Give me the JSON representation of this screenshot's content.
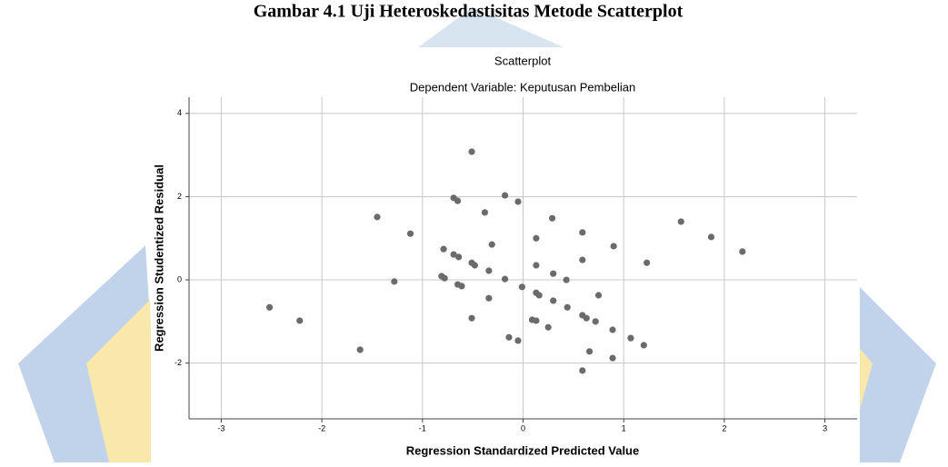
{
  "caption": "Gambar 4.1 Uji Heteroskedastisitas Metode Scatterplot",
  "chart_data": {
    "type": "scatter",
    "title": "Scatterplot",
    "subtitle": "Dependent Variable: Keputusan Pembelian",
    "x_label": "Regression Standardized Predicted Value",
    "y_label": "Regression Studentized Residual",
    "color": "#6b6b6b",
    "grid": true,
    "xlim": [
      -3.32,
      3.32
    ],
    "ylim": [
      -3.34,
      4.39
    ],
    "xticks": [
      -3,
      -2,
      -1,
      0,
      1,
      2,
      3
    ],
    "yticks": [
      -2,
      0,
      2,
      4
    ],
    "x": [
      -0.51,
      -0.69,
      -0.65,
      -0.18,
      -0.05,
      -0.38,
      -1.45,
      0.29,
      1.57,
      0.59,
      -1.12,
      0.13,
      1.87,
      -0.31,
      0.9,
      2.18,
      -0.79,
      -0.69,
      -0.64,
      0.59,
      1.23,
      -0.51,
      -0.48,
      0.13,
      -0.34,
      0.3,
      -0.81,
      -0.78,
      -0.18,
      0.43,
      -1.28,
      -0.65,
      -0.61,
      -0.01,
      0.13,
      0.16,
      -0.34,
      0.75,
      0.3,
      0.44,
      -2.52,
      0.59,
      0.63,
      -0.51,
      -2.22,
      0.09,
      0.13,
      0.72,
      0.25,
      0.89,
      1.07,
      -0.14,
      -0.05,
      1.2,
      -1.62,
      0.66,
      0.89,
      0.59
    ],
    "values": [
      3.08,
      1.97,
      1.9,
      2.03,
      1.88,
      1.62,
      1.51,
      1.48,
      1.4,
      1.14,
      1.11,
      1.0,
      1.03,
      0.85,
      0.81,
      0.68,
      0.74,
      0.61,
      0.55,
      0.48,
      0.41,
      0.41,
      0.35,
      0.35,
      0.22,
      0.15,
      0.09,
      0.04,
      0.02,
      0.0,
      -0.04,
      -0.11,
      -0.15,
      -0.17,
      -0.31,
      -0.37,
      -0.44,
      -0.37,
      -0.5,
      -0.66,
      -0.66,
      -0.85,
      -0.92,
      -0.92,
      -0.98,
      -0.96,
      -0.98,
      -1.0,
      -1.14,
      -1.2,
      -1.4,
      -1.38,
      -1.46,
      -1.57,
      -1.68,
      -1.72,
      -1.88,
      -2.18
    ]
  }
}
